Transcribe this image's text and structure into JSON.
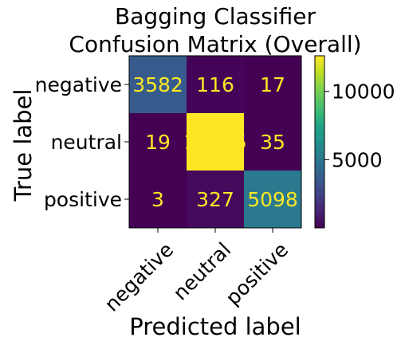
{
  "chart_data": {
    "type": "heatmap",
    "title_lines": [
      "Bagging Classifier",
      "Confusion Matrix (Overall)"
    ],
    "xlabel": "Predicted label",
    "ylabel": "True label",
    "x_categories": [
      "negative",
      "neutral",
      "positive"
    ],
    "y_categories": [
      "negative",
      "neutral",
      "positive"
    ],
    "values": [
      [
        3582,
        116,
        17
      ],
      [
        19,
        12605,
        35
      ],
      [
        3,
        327,
        5098
      ]
    ],
    "colormap": "viridis",
    "color_range": [
      3,
      12605
    ],
    "colorbar_ticks": [
      5000,
      10000
    ],
    "colorbar_tick_labels": [
      "5000",
      "10000"
    ],
    "annotation_color": "#fde725",
    "grid": false
  }
}
